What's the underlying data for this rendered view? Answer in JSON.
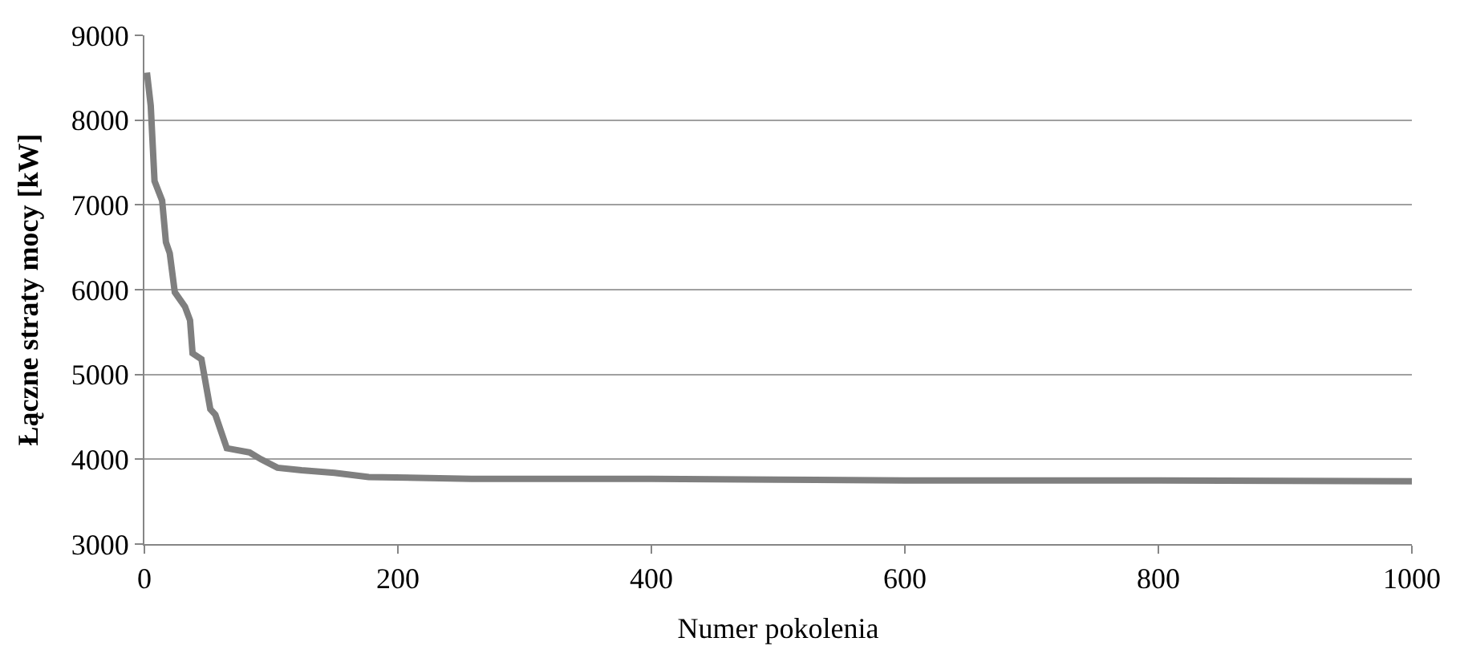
{
  "chart_data": {
    "type": "line",
    "xlabel": "Numer pokolenia",
    "ylabel": "Łączne straty mocy [kW]",
    "x": [
      2,
      5,
      8,
      14,
      17,
      20,
      24,
      32,
      36,
      38,
      45,
      52,
      56,
      65,
      83,
      92,
      105,
      124,
      150,
      177,
      258,
      400,
      500,
      600,
      800,
      1000
    ],
    "series": [
      {
        "color": "#7f7f7f",
        "values": [
          8560,
          8170,
          7280,
          7050,
          6560,
          6430,
          5970,
          5800,
          5640,
          5250,
          5180,
          4590,
          4525,
          4130,
          4080,
          4000,
          3900,
          3870,
          3840,
          3790,
          3770,
          3770,
          3760,
          3750,
          3750,
          3740
        ]
      }
    ],
    "xlim": [
      0,
      1000
    ],
    "xticks": [
      0,
      200,
      400,
      600,
      800,
      1000
    ],
    "ylim": [
      3000,
      9000
    ],
    "yticks": [
      3000,
      4000,
      5000,
      6000,
      7000,
      8000,
      9000
    ],
    "grid": "y",
    "marker": "none",
    "line_style": "solid"
  }
}
